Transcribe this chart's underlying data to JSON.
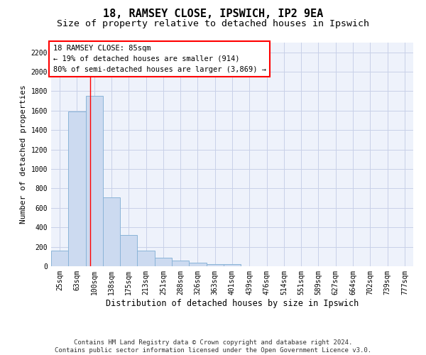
{
  "title1": "18, RAMSEY CLOSE, IPSWICH, IP2 9EA",
  "title2": "Size of property relative to detached houses in Ipswich",
  "xlabel": "Distribution of detached houses by size in Ipswich",
  "ylabel": "Number of detached properties",
  "categories": [
    "25sqm",
    "63sqm",
    "100sqm",
    "138sqm",
    "175sqm",
    "213sqm",
    "251sqm",
    "288sqm",
    "326sqm",
    "363sqm",
    "401sqm",
    "439sqm",
    "476sqm",
    "514sqm",
    "551sqm",
    "589sqm",
    "627sqm",
    "664sqm",
    "702sqm",
    "739sqm",
    "777sqm"
  ],
  "values": [
    160,
    1590,
    1750,
    710,
    320,
    160,
    90,
    55,
    35,
    25,
    20,
    0,
    0,
    0,
    0,
    0,
    0,
    0,
    0,
    0,
    0
  ],
  "bar_color": "#ccdaf0",
  "bar_edge_color": "#8ab4d8",
  "bar_width": 1.0,
  "red_line_x": 1.75,
  "ylim": [
    0,
    2300
  ],
  "yticks": [
    0,
    200,
    400,
    600,
    800,
    1000,
    1200,
    1400,
    1600,
    1800,
    2000,
    2200
  ],
  "annotation_box_text": "18 RAMSEY CLOSE: 85sqm\n← 19% of detached houses are smaller (914)\n80% of semi-detached houses are larger (3,869) →",
  "background_color": "#eef2fb",
  "grid_color": "#c8d0e8",
  "footer_text": "Contains HM Land Registry data © Crown copyright and database right 2024.\nContains public sector information licensed under the Open Government Licence v3.0.",
  "title1_fontsize": 11,
  "title2_fontsize": 9.5,
  "xlabel_fontsize": 8.5,
  "ylabel_fontsize": 8,
  "tick_fontsize": 7,
  "annotation_fontsize": 7.5,
  "footer_fontsize": 6.5
}
